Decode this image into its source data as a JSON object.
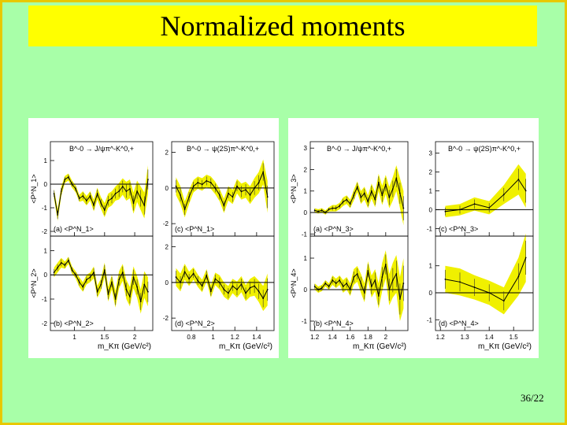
{
  "slide": {
    "title": "Normalized moments",
    "page_number": "36/22",
    "colors": {
      "background": "#a8ffa8",
      "title_bar": "#ffff00",
      "border": "#e8c800",
      "band": "#f0f000",
      "curve": "#000000"
    }
  },
  "chart_data": [
    {
      "type": "line",
      "title": "B^-0 → J/ψπ^-K^0,+",
      "panels": [
        {
          "label": "(a) <P^N_1>",
          "ylabel": "<P^N_1>",
          "ylim": [
            -2.2,
            1.8
          ],
          "yticks": [
            "-2",
            "-1",
            "0",
            "1"
          ],
          "x": [
            0.66,
            0.72,
            0.78,
            0.84,
            0.9,
            0.96,
            1.02,
            1.08,
            1.14,
            1.2,
            1.26,
            1.32,
            1.38,
            1.44,
            1.5,
            1.56,
            1.62,
            1.68,
            1.74,
            1.8,
            1.86,
            1.92,
            1.98,
            2.04,
            2.1,
            2.16,
            2.22
          ],
          "y": [
            -0.4,
            -1.3,
            -0.3,
            0.2,
            0.3,
            0.0,
            -0.2,
            -0.6,
            -0.5,
            -0.7,
            -0.5,
            -0.9,
            -0.4,
            -0.8,
            -1.1,
            -0.7,
            -0.6,
            -0.4,
            -0.3,
            -0.1,
            -0.3,
            -0.2,
            -0.8,
            -0.3,
            -0.6,
            -0.9,
            0.2
          ],
          "err": [
            0.2,
            0.25,
            0.2,
            0.15,
            0.15,
            0.15,
            0.15,
            0.15,
            0.2,
            0.2,
            0.2,
            0.25,
            0.25,
            0.25,
            0.3,
            0.3,
            0.3,
            0.3,
            0.35,
            0.35,
            0.4,
            0.4,
            0.45,
            0.45,
            0.5,
            0.55,
            0.6
          ]
        },
        {
          "label": "(b) <P^N_2>",
          "ylabel": "<P^N_2>",
          "ylim": [
            -2.3,
            1.6
          ],
          "yticks": [
            "-2",
            "-1",
            "0",
            "1"
          ],
          "x": [
            0.66,
            0.72,
            0.78,
            0.84,
            0.9,
            0.96,
            1.02,
            1.08,
            1.14,
            1.2,
            1.26,
            1.32,
            1.38,
            1.44,
            1.5,
            1.56,
            1.62,
            1.68,
            1.74,
            1.8,
            1.86,
            1.92,
            1.98,
            2.04,
            2.1,
            2.16,
            2.22
          ],
          "y": [
            0.1,
            0.3,
            0.5,
            0.4,
            0.6,
            0.2,
            0.0,
            -0.3,
            -0.5,
            -0.2,
            -0.1,
            0.1,
            -0.7,
            -0.4,
            0.2,
            -0.8,
            -0.3,
            -1.0,
            -0.2,
            0.1,
            -0.6,
            -0.9,
            -0.1,
            -0.5,
            -1.1,
            -0.4,
            -0.7
          ],
          "err": [
            0.2,
            0.2,
            0.2,
            0.15,
            0.15,
            0.15,
            0.15,
            0.2,
            0.2,
            0.2,
            0.2,
            0.25,
            0.25,
            0.25,
            0.3,
            0.3,
            0.3,
            0.35,
            0.35,
            0.35,
            0.4,
            0.4,
            0.45,
            0.45,
            0.5,
            0.55,
            0.6
          ]
        }
      ],
      "xlabel": "m_Kπ (GeV/c²)",
      "xlim": [
        0.6,
        2.3
      ],
      "xticks": [
        "1",
        "1.5",
        "2"
      ]
    },
    {
      "type": "line",
      "title": "B^-0 → ψ(2S)π^-K^0,+",
      "panels": [
        {
          "label": "(c) <P^N_1>",
          "ylim": [
            -2.7,
            2.6
          ],
          "yticks": [
            "-2",
            "0",
            "2"
          ],
          "x": [
            0.66,
            0.7,
            0.74,
            0.78,
            0.82,
            0.86,
            0.9,
            0.94,
            0.98,
            1.02,
            1.06,
            1.1,
            1.14,
            1.18,
            1.22,
            1.26,
            1.3,
            1.34,
            1.38,
            1.42,
            1.46,
            1.5
          ],
          "y": [
            0.1,
            -0.4,
            -1.2,
            -0.5,
            0.1,
            0.3,
            0.2,
            0.4,
            0.3,
            0.0,
            -0.4,
            -1.0,
            -0.3,
            -0.5,
            0.1,
            -0.2,
            -0.1,
            -0.4,
            0.0,
            0.3,
            0.9,
            -0.5
          ],
          "err": [
            0.5,
            0.5,
            0.45,
            0.4,
            0.35,
            0.35,
            0.35,
            0.35,
            0.35,
            0.35,
            0.35,
            0.4,
            0.4,
            0.4,
            0.4,
            0.45,
            0.45,
            0.5,
            0.55,
            0.6,
            0.7,
            0.9
          ]
        },
        {
          "label": "(d) <P^N_2>",
          "ylim": [
            -2.7,
            2.6
          ],
          "yticks": [
            "-2",
            "0",
            "2"
          ],
          "x": [
            0.66,
            0.7,
            0.74,
            0.78,
            0.82,
            0.86,
            0.9,
            0.94,
            0.98,
            1.02,
            1.06,
            1.1,
            1.14,
            1.18,
            1.22,
            1.26,
            1.3,
            1.34,
            1.38,
            1.42,
            1.46,
            1.5
          ],
          "y": [
            0.3,
            0.0,
            0.6,
            0.2,
            0.5,
            0.1,
            -0.2,
            0.4,
            -0.5,
            0.2,
            0.0,
            -0.4,
            -0.6,
            -0.2,
            -0.4,
            -0.1,
            -0.6,
            -0.3,
            -0.2,
            -0.5,
            -0.9,
            -0.4
          ],
          "err": [
            0.5,
            0.5,
            0.45,
            0.4,
            0.35,
            0.35,
            0.35,
            0.35,
            0.35,
            0.35,
            0.4,
            0.4,
            0.4,
            0.4,
            0.45,
            0.45,
            0.45,
            0.5,
            0.55,
            0.6,
            0.7,
            0.9
          ]
        }
      ],
      "xlabel": "m_Kπ (GeV/c²)",
      "xlim": [
        0.62,
        1.56
      ],
      "xticks": [
        "0.8",
        "1",
        "1.2",
        "1.4"
      ]
    },
    {
      "type": "line",
      "title": "B^-0 → J/ψπ^-K^0,+",
      "panels": [
        {
          "label": "(a) <P^N_3>",
          "ylabel": "<P^N_3>",
          "ylim": [
            -1.1,
            3.3
          ],
          "yticks": [
            "-1",
            "0",
            "1",
            "2",
            "3"
          ],
          "x": [
            1.2,
            1.24,
            1.28,
            1.32,
            1.36,
            1.4,
            1.44,
            1.48,
            1.52,
            1.56,
            1.6,
            1.64,
            1.68,
            1.72,
            1.76,
            1.8,
            1.84,
            1.88,
            1.92,
            1.96,
            2.0,
            2.04,
            2.08,
            2.12,
            2.16,
            2.2
          ],
          "y": [
            0.1,
            0.05,
            0.1,
            0.0,
            0.15,
            0.2,
            0.2,
            0.3,
            0.5,
            0.6,
            0.4,
            0.8,
            1.2,
            0.7,
            0.9,
            0.5,
            1.0,
            0.6,
            1.4,
            0.8,
            1.3,
            0.7,
            1.1,
            1.6,
            0.9,
            0.2
          ],
          "err": [
            0.1,
            0.1,
            0.1,
            0.1,
            0.1,
            0.15,
            0.15,
            0.15,
            0.2,
            0.2,
            0.2,
            0.25,
            0.25,
            0.3,
            0.3,
            0.3,
            0.35,
            0.35,
            0.4,
            0.45,
            0.45,
            0.5,
            0.55,
            0.6,
            0.7,
            0.8
          ]
        },
        {
          "label": "(b) <P^N_4>",
          "ylabel": "<P^N_4>",
          "ylim": [
            -1.3,
            1.7
          ],
          "yticks": [
            "-1",
            "0",
            "1"
          ],
          "x": [
            1.2,
            1.24,
            1.28,
            1.32,
            1.36,
            1.4,
            1.44,
            1.48,
            1.52,
            1.56,
            1.6,
            1.64,
            1.68,
            1.72,
            1.76,
            1.8,
            1.84,
            1.88,
            1.92,
            1.96,
            2.0,
            2.04,
            2.08,
            2.12,
            2.16,
            2.2
          ],
          "y": [
            0.1,
            0.0,
            0.05,
            0.2,
            0.1,
            0.3,
            0.2,
            0.3,
            0.1,
            0.2,
            0.0,
            0.4,
            0.5,
            0.2,
            -0.1,
            0.6,
            0.1,
            0.3,
            -0.2,
            0.4,
            0.8,
            0.0,
            0.3,
            0.5,
            -0.3,
            0.2
          ],
          "err": [
            0.1,
            0.1,
            0.1,
            0.1,
            0.1,
            0.15,
            0.15,
            0.15,
            0.2,
            0.2,
            0.2,
            0.25,
            0.25,
            0.3,
            0.3,
            0.3,
            0.35,
            0.35,
            0.4,
            0.45,
            0.45,
            0.5,
            0.55,
            0.6,
            0.7,
            0.8
          ]
        }
      ],
      "xlabel": "m_Kπ (GeV/c²)",
      "xlim": [
        1.15,
        2.25
      ],
      "xticks": [
        "1.2",
        "1.4",
        "1.6",
        "1.8",
        "2"
      ]
    },
    {
      "type": "line",
      "title": "B^-0 → ψ(2S)π^-K^0,+",
      "panels": [
        {
          "label": "(c) <P^N_3>",
          "ylim": [
            -1.4,
            3.6
          ],
          "yticks": [
            "-1",
            "0",
            "1",
            "2",
            "3"
          ],
          "x": [
            1.22,
            1.28,
            1.34,
            1.4,
            1.46,
            1.52,
            1.55
          ],
          "y": [
            -0.1,
            0.0,
            0.3,
            0.1,
            0.8,
            1.6,
            1.0
          ],
          "err": [
            0.3,
            0.3,
            0.35,
            0.35,
            0.5,
            0.8,
            0.9
          ]
        },
        {
          "label": "(d) <P^N_4>",
          "ylim": [
            -1.4,
            2.1
          ],
          "yticks": [
            "-1",
            "0",
            "1"
          ],
          "x": [
            1.22,
            1.28,
            1.34,
            1.4,
            1.46,
            1.52,
            1.55
          ],
          "y": [
            0.5,
            0.4,
            0.2,
            0.0,
            -0.3,
            0.6,
            1.3
          ],
          "err": [
            0.5,
            0.5,
            0.45,
            0.45,
            0.5,
            0.7,
            0.9
          ]
        }
      ],
      "xlabel": "m_Kπ (GeV/c²)",
      "xlim": [
        1.18,
        1.58
      ],
      "xticks": [
        "1.2",
        "1.3",
        "1.4",
        "1.5"
      ]
    }
  ]
}
